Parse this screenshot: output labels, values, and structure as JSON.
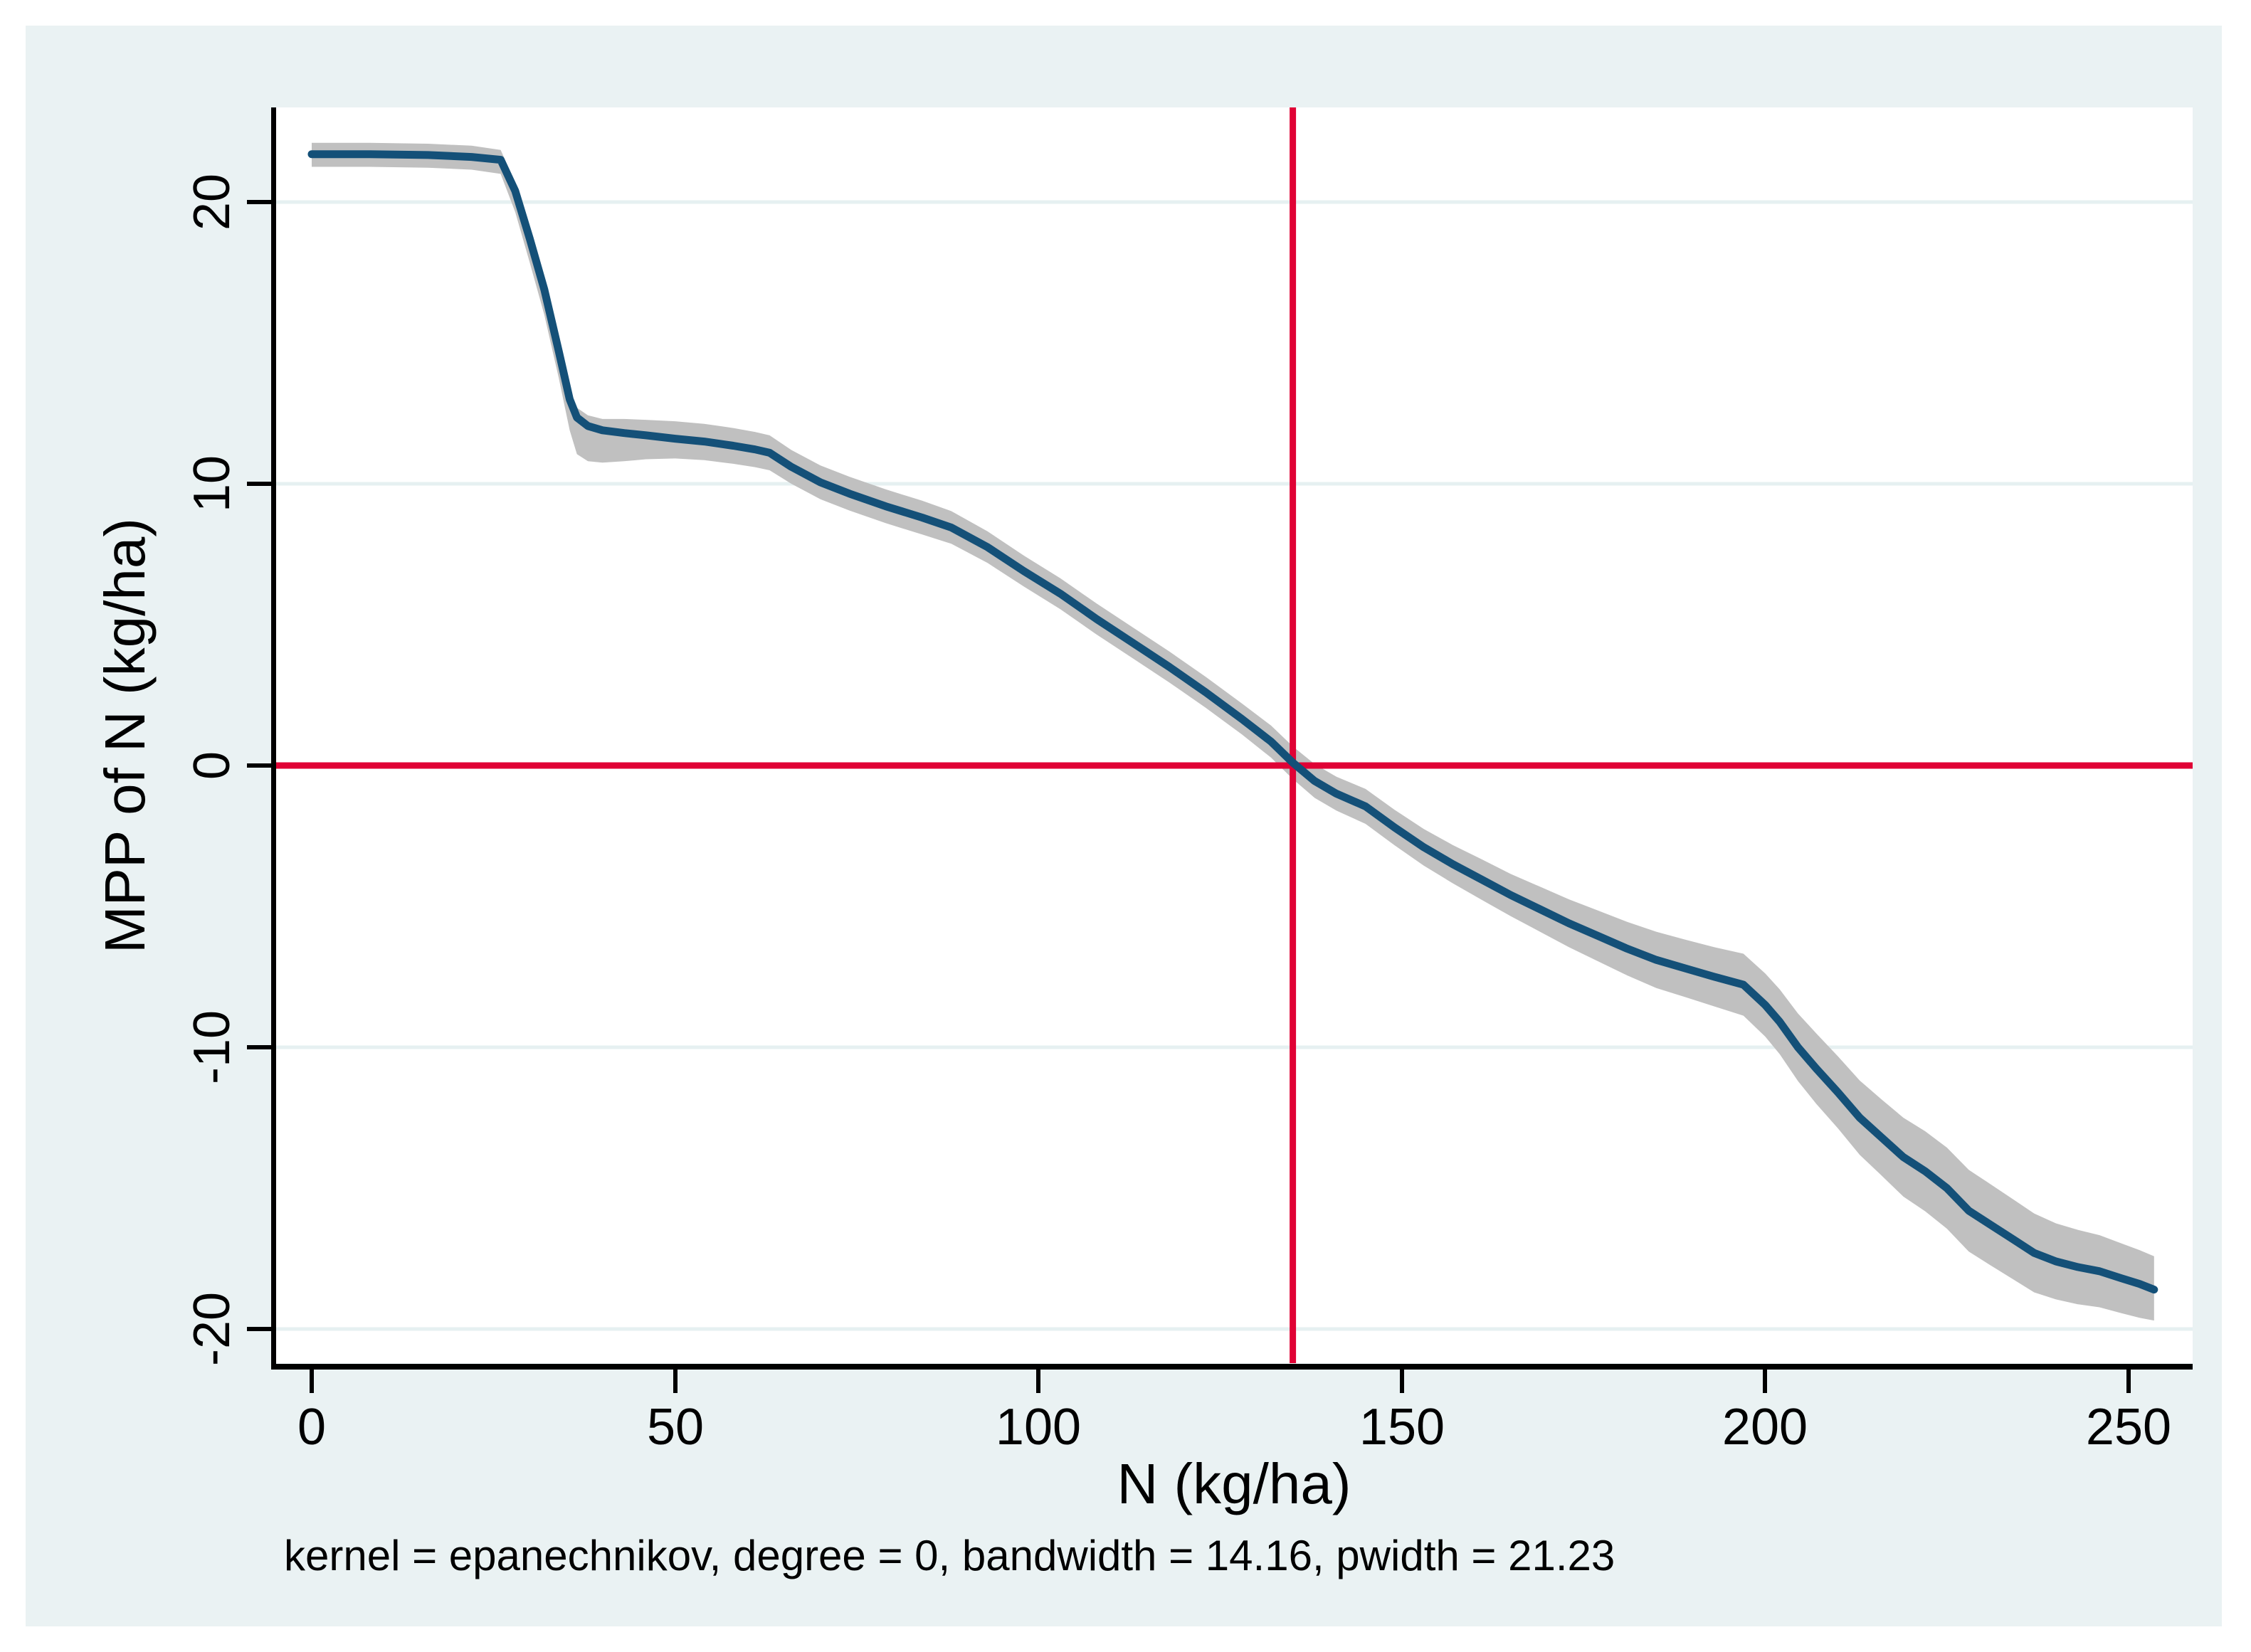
{
  "figure": {
    "kind": "stata-lpoly-smooth-plot",
    "note": "kernel = epanechnikov, degree = 0, bandwidth = 14.16, pwidth = 21.23"
  },
  "chart_data": {
    "type": "line",
    "title": "",
    "xlabel": "N (kg/ha)",
    "ylabel": "MPP of N (kg/ha)",
    "xlim": [
      -5,
      259
    ],
    "ylim": [
      -21.2,
      23.4
    ],
    "x_ticks": [
      0,
      50,
      100,
      150,
      200,
      250
    ],
    "y_ticks": [
      20,
      10,
      0,
      -10,
      -20
    ],
    "grid": true,
    "legend": "none",
    "note": "kernel = epanechnikov, degree = 0, bandwidth = 14.16, pwidth = 21.23",
    "reference_lines": {
      "horizontal_at_y": 0,
      "vertical_at_x": 135
    },
    "colors": {
      "line": "#145078",
      "ci_band": "#c0c0c0",
      "reference": "#e00235",
      "grid": "#e6f0f1",
      "panel_bg": "#eaf2f3",
      "plot_bg": "#ffffff",
      "text": "#000000"
    },
    "series": [
      {
        "name": "smoothed MPP of N with confidence band",
        "point_format": [
          "N",
          "MPP",
          "ci_upper_offset",
          "ci_lower_offset"
        ],
        "points": [
          [
            0,
            21.7,
            0.4,
            0.45
          ],
          [
            8,
            21.7,
            0.4,
            0.45
          ],
          [
            16,
            21.67,
            0.4,
            0.45
          ],
          [
            22,
            21.6,
            0.4,
            0.45
          ],
          [
            26,
            21.5,
            0.35,
            0.5
          ],
          [
            28,
            20.4,
            0.3,
            0.75
          ],
          [
            30,
            18.7,
            0.3,
            0.85
          ],
          [
            32,
            16.9,
            0.3,
            0.9
          ],
          [
            34,
            14.7,
            0.3,
            0.95
          ],
          [
            35.5,
            13.0,
            0.32,
            1.1
          ],
          [
            36.5,
            12.35,
            0.35,
            1.3
          ],
          [
            38,
            12.05,
            0.38,
            1.25
          ],
          [
            40,
            11.9,
            0.4,
            1.15
          ],
          [
            43,
            11.8,
            0.5,
            1.0
          ],
          [
            46,
            11.72,
            0.55,
            0.85
          ],
          [
            50,
            11.6,
            0.62,
            0.7
          ],
          [
            54,
            11.5,
            0.63,
            0.66
          ],
          [
            58,
            11.35,
            0.63,
            0.64
          ],
          [
            61,
            11.22,
            0.62,
            0.63
          ],
          [
            63,
            11.1,
            0.62,
            0.62
          ],
          [
            66,
            10.6,
            0.6,
            0.6
          ],
          [
            70,
            10.05,
            0.6,
            0.6
          ],
          [
            74,
            9.65,
            0.6,
            0.6
          ],
          [
            79,
            9.2,
            0.6,
            0.6
          ],
          [
            84,
            8.8,
            0.6,
            0.6
          ],
          [
            88,
            8.45,
            0.58,
            0.58
          ],
          [
            93,
            7.75,
            0.56,
            0.56
          ],
          [
            98,
            6.9,
            0.55,
            0.55
          ],
          [
            103,
            6.1,
            0.55,
            0.55
          ],
          [
            108,
            5.2,
            0.55,
            0.55
          ],
          [
            113,
            4.35,
            0.55,
            0.55
          ],
          [
            118,
            3.5,
            0.55,
            0.55
          ],
          [
            123,
            2.6,
            0.55,
            0.55
          ],
          [
            128,
            1.65,
            0.55,
            0.55
          ],
          [
            132,
            0.85,
            0.57,
            0.57
          ],
          [
            135,
            0.1,
            0.58,
            0.58
          ],
          [
            138,
            -0.55,
            0.6,
            0.6
          ],
          [
            141,
            -1.0,
            0.6,
            0.6
          ],
          [
            145,
            -1.45,
            0.62,
            0.62
          ],
          [
            149,
            -2.2,
            0.63,
            0.63
          ],
          [
            153,
            -2.9,
            0.65,
            0.65
          ],
          [
            157,
            -3.5,
            0.68,
            0.68
          ],
          [
            161,
            -4.05,
            0.72,
            0.72
          ],
          [
            165,
            -4.6,
            0.75,
            0.75
          ],
          [
            169,
            -5.1,
            0.8,
            0.8
          ],
          [
            173,
            -5.6,
            0.85,
            0.85
          ],
          [
            177,
            -6.05,
            0.9,
            0.9
          ],
          [
            181,
            -6.5,
            0.95,
            0.95
          ],
          [
            185,
            -6.9,
            1.0,
            1.0
          ],
          [
            189,
            -7.2,
            1.02,
            1.02
          ],
          [
            193,
            -7.5,
            1.05,
            1.05
          ],
          [
            197,
            -7.78,
            1.1,
            1.1
          ],
          [
            200,
            -8.5,
            1.12,
            1.12
          ],
          [
            202,
            -9.1,
            1.15,
            1.15
          ],
          [
            204.5,
            -10.0,
            1.2,
            1.2
          ],
          [
            207,
            -10.75,
            1.25,
            1.25
          ],
          [
            210,
            -11.6,
            1.28,
            1.28
          ],
          [
            213,
            -12.5,
            1.32,
            1.32
          ],
          [
            216,
            -13.2,
            1.35,
            1.35
          ],
          [
            219,
            -13.9,
            1.4,
            1.4
          ],
          [
            222,
            -14.4,
            1.42,
            1.42
          ],
          [
            225,
            -15.0,
            1.44,
            1.44
          ],
          [
            228,
            -15.8,
            1.45,
            1.45
          ],
          [
            231,
            -16.3,
            1.44,
            1.44
          ],
          [
            234,
            -16.8,
            1.42,
            1.42
          ],
          [
            237,
            -17.3,
            1.4,
            1.4
          ],
          [
            240,
            -17.6,
            1.35,
            1.35
          ],
          [
            243,
            -17.8,
            1.32,
            1.32
          ],
          [
            246,
            -17.95,
            1.28,
            1.28
          ],
          [
            249,
            -18.2,
            1.24,
            1.24
          ],
          [
            251.5,
            -18.4,
            1.2,
            1.2
          ],
          [
            253.5,
            -18.6,
            1.18,
            1.1
          ]
        ]
      }
    ]
  }
}
